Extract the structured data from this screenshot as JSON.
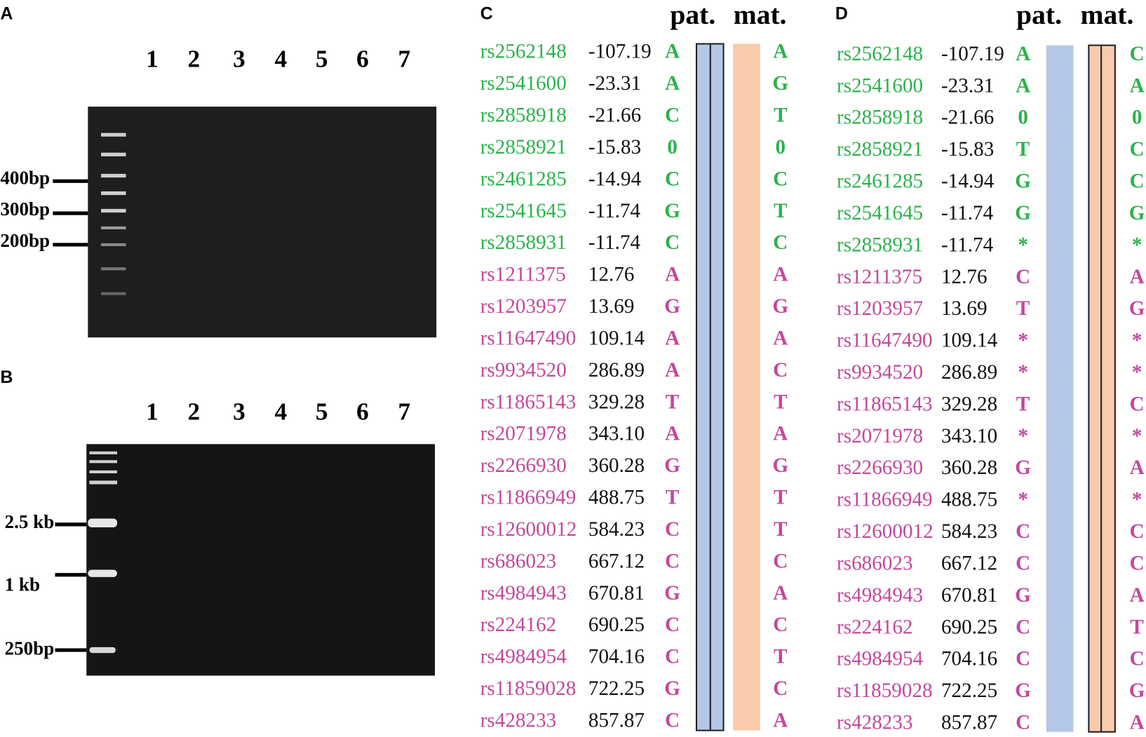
{
  "panels": [
    {
      "label": "A",
      "lanes": [
        "1",
        "2",
        "3",
        "4",
        "5",
        "6",
        "7"
      ],
      "markers": [
        "400bp",
        "300bp",
        "200bp"
      ]
    },
    {
      "label": "B",
      "lanes": [
        "1",
        "2",
        "3",
        "4",
        "5",
        "6",
        "7"
      ],
      "markers": [
        "2.5 kb",
        "1 kb",
        "250bp"
      ]
    },
    {
      "label": "C",
      "headers": [
        "pat.",
        "mat."
      ],
      "rows": [
        [
          "rs2562148",
          "-107.19",
          "A",
          "A"
        ],
        [
          "rs2541600",
          "-23.31",
          "A",
          "G"
        ],
        [
          "rs2858918",
          "-21.66",
          "C",
          "T"
        ],
        [
          "rs2858921",
          "-15.83",
          "0",
          "0"
        ],
        [
          "rs2461285",
          "-14.94",
          "C",
          "C"
        ],
        [
          "rs2541645",
          "-11.74",
          "G",
          "T"
        ],
        [
          "rs2858931",
          "-11.74",
          "C",
          "C"
        ],
        [
          "rs1211375",
          "12.76",
          "A",
          "A"
        ],
        [
          "rs1203957",
          "13.69",
          "G",
          "G"
        ],
        [
          "rs11647490",
          "109.14",
          "A",
          "A"
        ],
        [
          "rs9934520",
          "286.89",
          "A",
          "C"
        ],
        [
          "rs11865143",
          "329.28",
          "T",
          "T"
        ],
        [
          "rs2071978",
          "343.10",
          "A",
          "A"
        ],
        [
          "rs2266930",
          "360.28",
          "G",
          "G"
        ],
        [
          "rs11866949",
          "488.75",
          "T",
          "T"
        ],
        [
          "rs12600012",
          "584.23",
          "C",
          "T"
        ],
        [
          "rs686023",
          "667.12",
          "C",
          "C"
        ],
        [
          "rs4984943",
          "670.81",
          "G",
          "A"
        ],
        [
          "rs224162",
          "690.25",
          "C",
          "C"
        ],
        [
          "rs4984954",
          "704.16",
          "C",
          "T"
        ],
        [
          "rs11859028",
          "722.25",
          "G",
          "C"
        ],
        [
          "rs428233",
          "857.87",
          "C",
          "A"
        ]
      ]
    },
    {
      "label": "D",
      "headers": [
        "pat.",
        "mat."
      ],
      "rows": [
        [
          "rs2562148",
          "-107.19",
          "A",
          "C"
        ],
        [
          "rs2541600",
          "-23.31",
          "A",
          "A"
        ],
        [
          "rs2858918",
          "-21.66",
          "0",
          "0"
        ],
        [
          "rs2858921",
          "-15.83",
          "T",
          "C"
        ],
        [
          "rs2461285",
          "-14.94",
          "G",
          "C"
        ],
        [
          "rs2541645",
          "-11.74",
          "G",
          "G"
        ],
        [
          "rs2858931",
          "-11.74",
          "*",
          "*"
        ],
        [
          "rs1211375",
          "12.76",
          "C",
          "A"
        ],
        [
          "rs1203957",
          "13.69",
          "T",
          "G"
        ],
        [
          "rs11647490",
          "109.14",
          "*",
          "*"
        ],
        [
          "rs9934520",
          "286.89",
          "*",
          "*"
        ],
        [
          "rs11865143",
          "329.28",
          "T",
          "C"
        ],
        [
          "rs2071978",
          "343.10",
          "*",
          "*"
        ],
        [
          "rs2266930",
          "360.28",
          "G",
          "A"
        ],
        [
          "rs11866949",
          "488.75",
          "*",
          "*"
        ],
        [
          "rs12600012",
          "584.23",
          "C",
          "C"
        ],
        [
          "rs686023",
          "667.12",
          "C",
          "C"
        ],
        [
          "rs4984943",
          "670.81",
          "G",
          "A"
        ],
        [
          "rs224162",
          "690.25",
          "C",
          "T"
        ],
        [
          "rs4984954",
          "704.16",
          "C",
          "C"
        ],
        [
          "rs11859028",
          "722.25",
          "G",
          "G"
        ],
        [
          "rs428233",
          "857.87",
          "C",
          "A"
        ]
      ]
    }
  ]
}
